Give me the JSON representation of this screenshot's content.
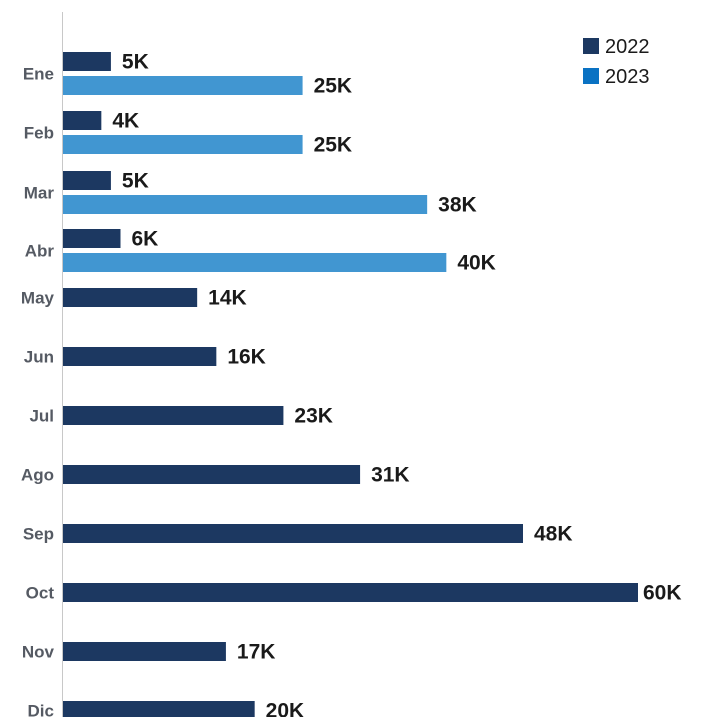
{
  "chart_data": {
    "type": "bar",
    "orientation": "horizontal",
    "categories": [
      "Ene",
      "Feb",
      "Mar",
      "Abr",
      "May",
      "Jun",
      "Jul",
      "Ago",
      "Sep",
      "Oct",
      "Nov",
      "Dic"
    ],
    "series": [
      {
        "name": "2022",
        "color": "#1c3861",
        "values": [
          5,
          4,
          5,
          6,
          14,
          16,
          23,
          31,
          48,
          60,
          17,
          20
        ],
        "labels": [
          "5K",
          "4K",
          "5K",
          "6K",
          "14K",
          "16K",
          "23K",
          "31K",
          "48K",
          "60K",
          "17K",
          "20K"
        ]
      },
      {
        "name": "2023",
        "color": "#4196d1",
        "values": [
          25,
          25,
          38,
          40,
          null,
          null,
          null,
          null,
          null,
          null,
          null,
          null
        ],
        "labels": [
          "25K",
          "25K",
          "38K",
          "40K",
          "",
          "",
          "",
          "",
          "",
          "",
          "",
          ""
        ]
      }
    ],
    "legend": {
      "position": "top-right",
      "entries": [
        {
          "label": "2022",
          "color": "#1c3861"
        },
        {
          "label": "2023",
          "color": "#0a72c3"
        }
      ]
    },
    "title": "",
    "xlabel": "",
    "ylabel": "",
    "xlim": [
      0,
      60
    ],
    "grid": false
  }
}
